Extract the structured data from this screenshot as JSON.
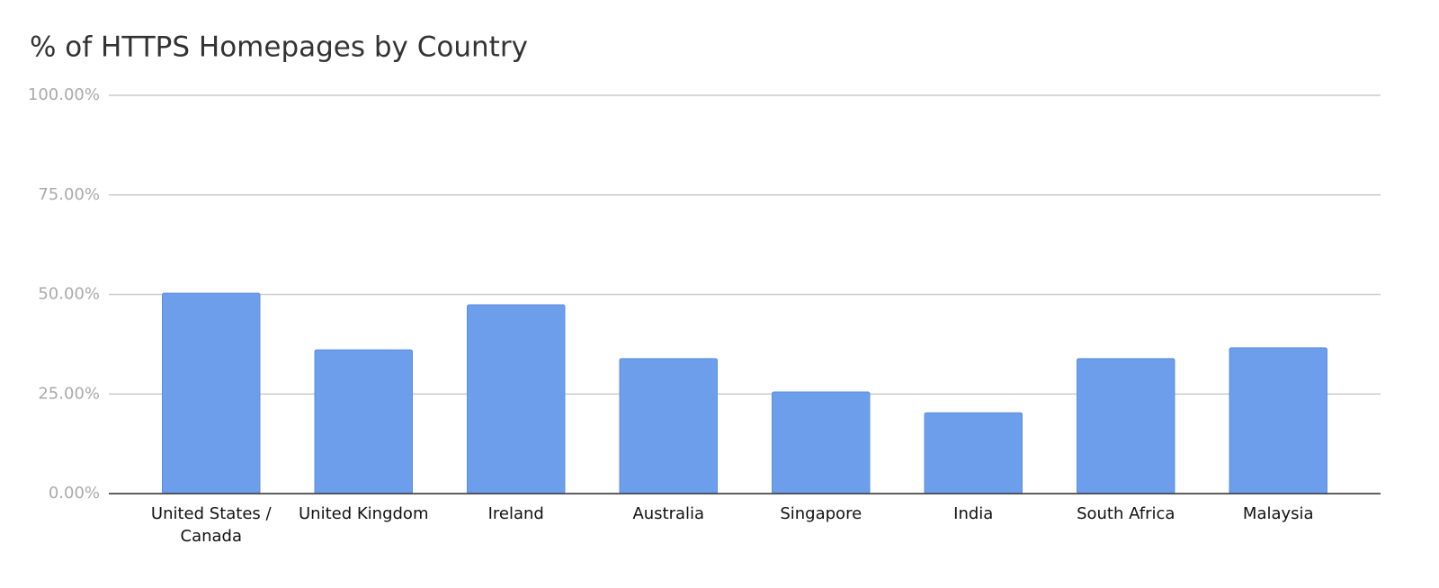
{
  "chart_data": {
    "type": "bar",
    "title": "% of HTTPS Homepages by Country",
    "categories": [
      "United States / Canada",
      "United Kingdom",
      "Ireland",
      "Australia",
      "Singapore",
      "India",
      "South Africa",
      "Malaysia"
    ],
    "values": [
      50.3,
      36.1,
      47.4,
      33.9,
      25.5,
      20.3,
      33.9,
      36.6
    ],
    "color": "#6d9eeb",
    "ylim": [
      0,
      100
    ],
    "yticks": [
      {
        "value": 0,
        "label": "0.00%"
      },
      {
        "value": 25,
        "label": "25.00%"
      },
      {
        "value": 50,
        "label": "50.00%"
      },
      {
        "value": 75,
        "label": "75.00%"
      },
      {
        "value": 100,
        "label": "100.00%"
      }
    ],
    "grid": true
  }
}
